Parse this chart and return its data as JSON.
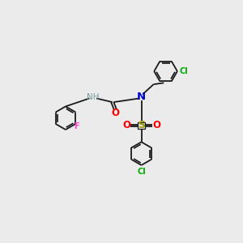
{
  "background_color": "#ebebeb",
  "bond_color": "#1a1a1a",
  "bg": "#ebebeb",
  "colors": {
    "N": "#0000cc",
    "H": "#7a9a9a",
    "O": "#ff0000",
    "S": "#cccc00",
    "F": "#ff44cc",
    "Cl": "#00aa00"
  },
  "ring_r": 0.62,
  "lw": 1.3
}
